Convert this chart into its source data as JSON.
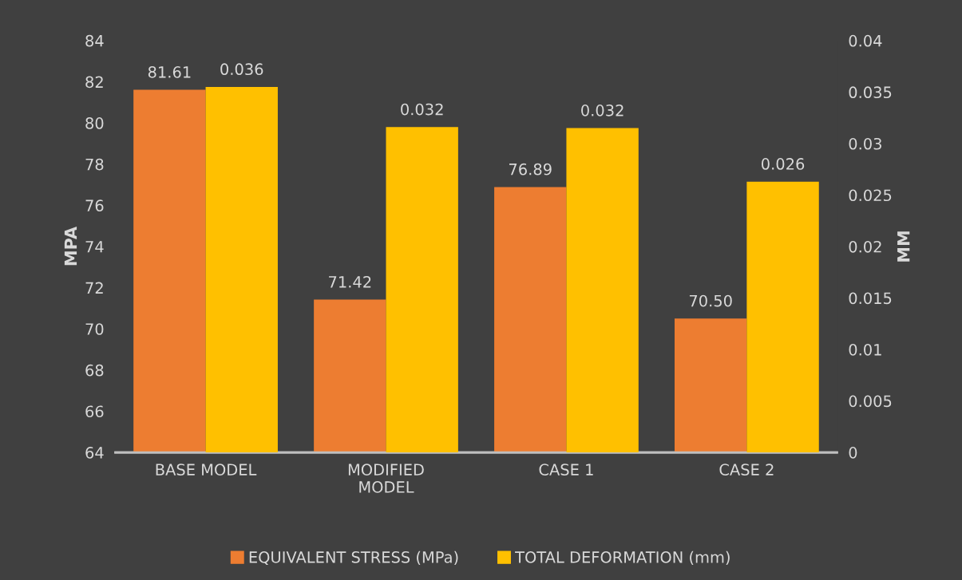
{
  "chart_data": {
    "type": "bar",
    "ylabel": "MPA",
    "y2label": "MM",
    "categories": [
      "BASE MODEL",
      "MODIFIED\nMODEL",
      "CASE 1",
      "CASE 2"
    ],
    "series": [
      {
        "name": "EQUIVALENT STRESS (MPa)",
        "color": "#ed7d31",
        "values": [
          81.61,
          71.42,
          76.89,
          70.5
        ],
        "value_labels": [
          "81.61",
          "71.42",
          "76.89",
          "70.50"
        ]
      },
      {
        "name": "TOTAL DEFORMATION (mm)",
        "color": "#ffc000",
        "axis": "y2",
        "values": [
          0.0355,
          0.0316,
          0.0315,
          0.0263
        ],
        "value_labels": [
          "0.036",
          "0.032",
          "0.032",
          "0.026"
        ]
      }
    ],
    "ylim": [
      64,
      84
    ],
    "yticks": [
      64,
      66,
      68,
      70,
      72,
      74,
      76,
      78,
      80,
      82,
      84
    ],
    "y2lim": [
      0,
      0.04
    ],
    "y2ticks": [
      0,
      0.005,
      0.01,
      0.015,
      0.02,
      0.025,
      0.03,
      0.035,
      0.04
    ],
    "grid": false,
    "legend": "bottom"
  }
}
